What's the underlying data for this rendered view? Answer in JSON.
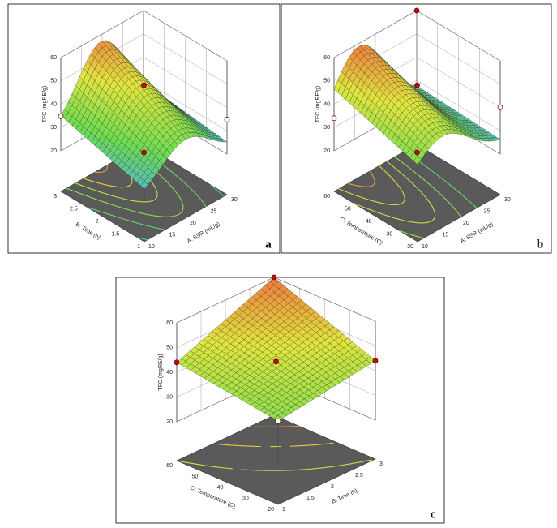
{
  "panels": [
    {
      "letter": "a",
      "z_axis_label": "TFC (mgRE/g)",
      "z_ticks": [
        "20",
        "30",
        "40",
        "50",
        "60"
      ],
      "left_axis_label": "B: Time (h)",
      "left_ticks": [
        "1",
        "1.5",
        "2",
        "2.5",
        "3"
      ],
      "right_axis_label": "A: SSR (mL/g)",
      "right_ticks": [
        "10",
        "15",
        "20",
        "25",
        "30"
      ]
    },
    {
      "letter": "b",
      "z_axis_label": "TFC (mgRE/g)",
      "z_ticks": [
        "20",
        "30",
        "40",
        "50",
        "60"
      ],
      "left_axis_label": "C: Temperature (C)",
      "left_ticks": [
        "20",
        "30",
        "40",
        "50",
        "60"
      ],
      "right_axis_label": "A: SSR (mL/g)",
      "right_ticks": [
        "10",
        "15",
        "20",
        "25",
        "30"
      ]
    },
    {
      "letter": "c",
      "z_axis_label": "TFC (mgRE/g)",
      "z_ticks": [
        "20",
        "30",
        "40",
        "50",
        "60"
      ],
      "left_axis_label": "C: Temperature (C)",
      "left_ticks": [
        "20",
        "30",
        "40",
        "50",
        "60"
      ],
      "right_axis_label": "B: Time (h)",
      "right_ticks": [
        "1",
        "1.5",
        "2",
        "2.5",
        "3"
      ]
    }
  ]
}
